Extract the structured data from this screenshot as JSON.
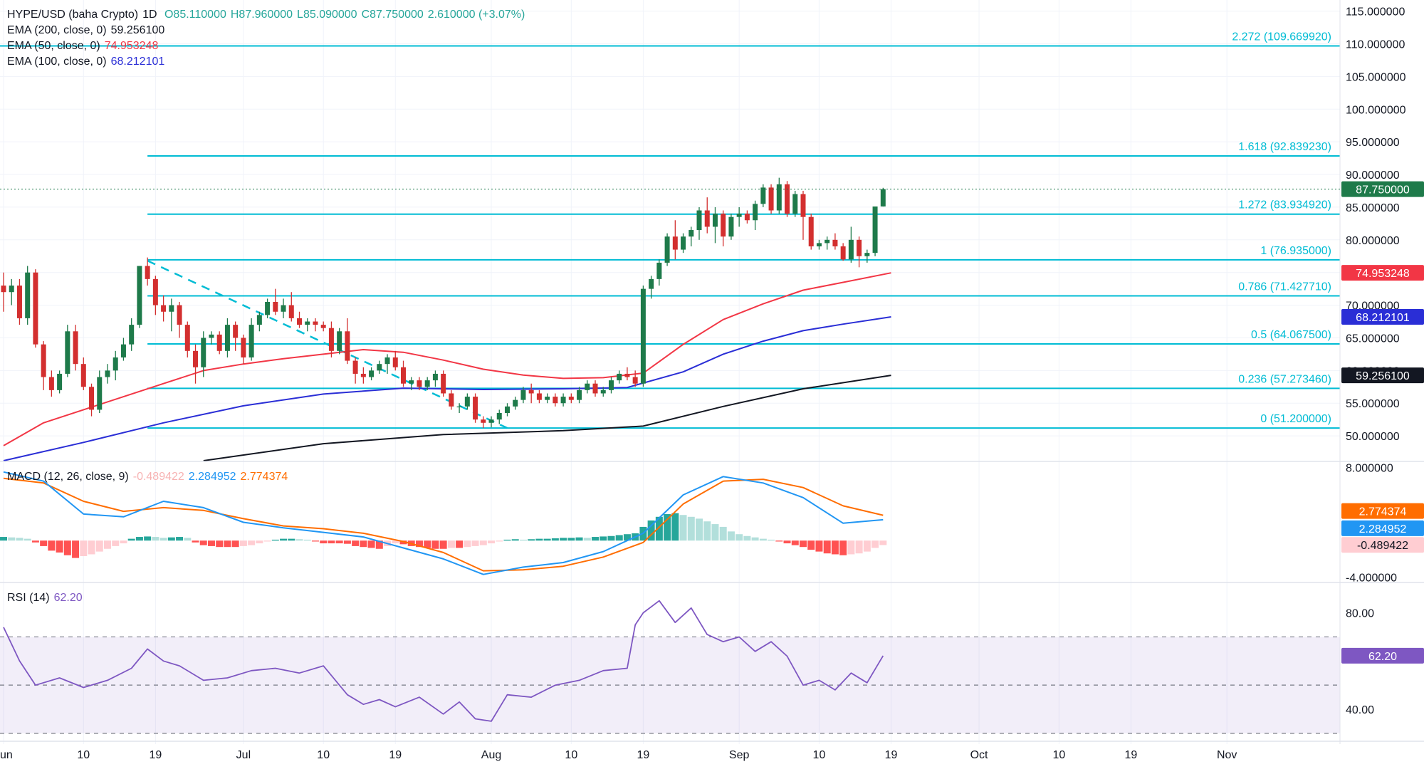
{
  "header": {
    "symbol": "HYPE/USD (baha Crypto)",
    "interval": "1D",
    "open": "O85.110000",
    "high": "H87.960000",
    "low": "L85.090000",
    "close": "C87.750000",
    "change": "2.610000 (+3.07%)"
  },
  "indicators": {
    "ema200": {
      "label": "EMA (200, close, 0)",
      "value": "59.256100",
      "color": "#131722"
    },
    "ema50": {
      "label": "EMA (50, close, 0)",
      "value": "74.953248",
      "color": "#f23645"
    },
    "ema100": {
      "label": "EMA (100, close, 0)",
      "value": "68.212101",
      "color": "#2a2ed6"
    },
    "macd": {
      "label": "MACD (12, 26, close, 9)",
      "hist": "-0.489422",
      "macd": "2.284952",
      "signal": "2.774374",
      "macd_color": "#2196f3",
      "signal_color": "#ff6d00"
    },
    "rsi": {
      "label": "RSI (14)",
      "value": "62.20",
      "color": "#7e57c2"
    }
  },
  "colors": {
    "up": "#26a69a",
    "down": "#ef5350",
    "fib": "#00bcd4",
    "up_dark": "#1e7a4a",
    "down_dark": "#d32f2f"
  },
  "x_axis": {
    "labels": [
      "un",
      "10",
      "19",
      "Jul",
      "10",
      "19",
      "Aug",
      "10",
      "19",
      "Sep",
      "10",
      "19",
      "Oct",
      "10",
      "19",
      "Nov"
    ],
    "label_days": [
      0,
      10,
      19,
      30,
      40,
      49,
      61,
      71,
      80,
      92,
      102,
      111,
      122,
      132,
      141,
      153
    ]
  },
  "chart_data": [
    {
      "type": "candlestick",
      "name": "price",
      "x_start": "May 31",
      "y_ticks": [
        "115.000000",
        "110.000000",
        "105.000000",
        "100.000000",
        "95.000000",
        "90.000000",
        "85.000000",
        "80.000000",
        "75.000000",
        "70.000000",
        "65.000000",
        "60.000000",
        "55.000000",
        "50.000000"
      ],
      "y_tick_values": [
        115,
        110,
        105,
        100,
        95,
        90,
        85,
        80,
        75,
        70,
        65,
        60,
        55,
        50
      ],
      "ylim": [
        46.2,
        116.7
      ],
      "last_price": "87.750000",
      "ohlc": [
        [
          73,
          75,
          69,
          72
        ],
        [
          72,
          74,
          70,
          73
        ],
        [
          73,
          74,
          67,
          68
        ],
        [
          68,
          76,
          67,
          75
        ],
        [
          75,
          75.5,
          63.5,
          64
        ],
        [
          64,
          64.5,
          57,
          59
        ],
        [
          59,
          60,
          56,
          57
        ],
        [
          57,
          60,
          56.5,
          59.5
        ],
        [
          59.5,
          67,
          59,
          66
        ],
        [
          66,
          67,
          60,
          61
        ],
        [
          61,
          62,
          57,
          57.5
        ],
        [
          57.5,
          58,
          53,
          54
        ],
        [
          54,
          60,
          53.5,
          59
        ],
        [
          59,
          61,
          58,
          60
        ],
        [
          60,
          63,
          58.5,
          62
        ],
        [
          62,
          65,
          61.5,
          64
        ],
        [
          64,
          68,
          63,
          67
        ],
        [
          67,
          76,
          66.5,
          76
        ],
        [
          76,
          77.3,
          73,
          74
        ],
        [
          74,
          74.5,
          68.5,
          70
        ],
        [
          70,
          71.5,
          67.5,
          69
        ],
        [
          69,
          71,
          66,
          70
        ],
        [
          70,
          70.5,
          65,
          67
        ],
        [
          67,
          67.5,
          62,
          63
        ],
        [
          63,
          64,
          58,
          60.5
        ],
        [
          60.5,
          66,
          59,
          65
        ],
        [
          65,
          66,
          64,
          65.5
        ],
        [
          65.5,
          66,
          62.5,
          63
        ],
        [
          63,
          68,
          62,
          67
        ],
        [
          67,
          67.5,
          63,
          65
        ],
        [
          65,
          65.5,
          61,
          62
        ],
        [
          62,
          68,
          61.5,
          67
        ],
        [
          67,
          69,
          66,
          68.5
        ],
        [
          68.5,
          71,
          68,
          70.5
        ],
        [
          70.5,
          72.5,
          68.5,
          69
        ],
        [
          69,
          71,
          68,
          70
        ],
        [
          70,
          72,
          67.5,
          68
        ],
        [
          68,
          69,
          66.5,
          67
        ],
        [
          67,
          68,
          66,
          67.5
        ],
        [
          67.5,
          68,
          66,
          67
        ],
        [
          67,
          67.5,
          66,
          66.5
        ],
        [
          66.5,
          67.5,
          62,
          63
        ],
        [
          63,
          66.5,
          62.5,
          66
        ],
        [
          66,
          68,
          61,
          61.5
        ],
        [
          61.5,
          62,
          58,
          59.5
        ],
        [
          59.5,
          60.5,
          58,
          59
        ],
        [
          59,
          60.5,
          58.5,
          60
        ],
        [
          60,
          61.5,
          59.5,
          61
        ],
        [
          61,
          62.5,
          59.5,
          62
        ],
        [
          62,
          63,
          60,
          60.5
        ],
        [
          60.5,
          61.5,
          57.5,
          58
        ],
        [
          58,
          59,
          57,
          58.5
        ],
        [
          58.5,
          59,
          57,
          57.5
        ],
        [
          57.5,
          59,
          57,
          58.5
        ],
        [
          58.5,
          60,
          57.5,
          59.5
        ],
        [
          59.5,
          60,
          56,
          56.5
        ],
        [
          56.5,
          57,
          54,
          54.5
        ],
        [
          54.5,
          55,
          53.5,
          54.5
        ],
        [
          54.5,
          56.5,
          54,
          56
        ],
        [
          56,
          56.5,
          52,
          52.5
        ],
        [
          52.5,
          53,
          51.2,
          52
        ],
        [
          52,
          53,
          51.3,
          52.5
        ],
        [
          52.5,
          54,
          51.8,
          53.5
        ],
        [
          53.5,
          55,
          53,
          54.5
        ],
        [
          54.5,
          56,
          54,
          55.5
        ],
        [
          55.5,
          57.5,
          55,
          57
        ],
        [
          57,
          58,
          55,
          56.5
        ],
        [
          56.5,
          57,
          55,
          55.5
        ],
        [
          55.5,
          56.5,
          55,
          56
        ],
        [
          56,
          56.5,
          54.5,
          55
        ],
        [
          55,
          56.5,
          54.5,
          56
        ],
        [
          56,
          56.5,
          55,
          55.5
        ],
        [
          55.5,
          57.5,
          55,
          57
        ],
        [
          57,
          58.5,
          56.5,
          58
        ],
        [
          58,
          58.5,
          56,
          56.5
        ],
        [
          56.5,
          57.5,
          56,
          57
        ],
        [
          57,
          59,
          56.5,
          58.5
        ],
        [
          58.5,
          60,
          58,
          59.5
        ],
        [
          59.5,
          60.5,
          58.5,
          59
        ],
        [
          59,
          60,
          57.5,
          58
        ],
        [
          58,
          73,
          57.5,
          72.5
        ],
        [
          72.5,
          74.5,
          71,
          74
        ],
        [
          74,
          77,
          73,
          76.5
        ],
        [
          76.5,
          81,
          76,
          80.5
        ],
        [
          80.5,
          83,
          77,
          78.5
        ],
        [
          78.5,
          81,
          78,
          80.5
        ],
        [
          80.5,
          82,
          79,
          81.5
        ],
        [
          81.5,
          85,
          80,
          84.5
        ],
        [
          84.5,
          86.5,
          81,
          82
        ],
        [
          82,
          85,
          79.5,
          84
        ],
        [
          84,
          84.5,
          79,
          80.5
        ],
        [
          80.5,
          84,
          80,
          83.5
        ],
        [
          83.5,
          85,
          82,
          84
        ],
        [
          84,
          84.5,
          82.5,
          83
        ],
        [
          83,
          86,
          81.5,
          85.5
        ],
        [
          85.5,
          88.5,
          85,
          88
        ],
        [
          88,
          88.5,
          84,
          84.5
        ],
        [
          84.5,
          89.5,
          84,
          88.5
        ],
        [
          88.5,
          89,
          83.5,
          84
        ],
        [
          84,
          87.5,
          83.5,
          87
        ],
        [
          87,
          87.5,
          80,
          83.5
        ],
        [
          83.5,
          84,
          78.5,
          79
        ],
        [
          79,
          80,
          78.5,
          79.5
        ],
        [
          79.5,
          80.5,
          78.5,
          80
        ],
        [
          80,
          81,
          78.5,
          79
        ],
        [
          79,
          79.5,
          76.8,
          77
        ],
        [
          77,
          82,
          76.5,
          80
        ],
        [
          80,
          80.5,
          75.8,
          77.5
        ],
        [
          77.5,
          78.5,
          76.5,
          78
        ],
        [
          78,
          85,
          77.5,
          85.1
        ],
        [
          85.11,
          87.96,
          85.09,
          87.75
        ]
      ],
      "ema": {
        "ema50": {
          "x": [
            0,
            5,
            10,
            15,
            20,
            25,
            30,
            35,
            40,
            45,
            50,
            55,
            60,
            65,
            70,
            75,
            80,
            85,
            90,
            95,
            100,
            105,
            111
          ],
          "y": [
            48.5,
            52,
            54,
            56,
            58,
            60,
            61,
            61.8,
            62.5,
            63.2,
            62.8,
            61.6,
            60.2,
            59.3,
            58.8,
            58.9,
            59.6,
            64,
            67.8,
            70.2,
            72.3,
            73.5,
            74.95
          ]
        },
        "ema100": {
          "x": [
            0,
            10,
            20,
            30,
            40,
            50,
            60,
            70,
            78,
            85,
            90,
            95,
            100,
            105,
            111
          ],
          "y": [
            46.2,
            49,
            52,
            54.6,
            56.4,
            57.3,
            57.1,
            57.2,
            57.4,
            59.8,
            62.5,
            64.5,
            66.1,
            67.1,
            68.21
          ]
        },
        "ema200": {
          "x": [
            25,
            40,
            55,
            70,
            80,
            90,
            100,
            111
          ],
          "y": [
            46.2,
            48.8,
            50.2,
            50.8,
            51.5,
            54.5,
            57.2,
            59.26
          ]
        }
      },
      "fibonacci": [
        {
          "level": "2.272",
          "price": 109.66992,
          "label": "2.272 (109.669920)"
        },
        {
          "level": "1.618",
          "price": 92.83923,
          "label": "1.618 (92.839230)"
        },
        {
          "level": "1.272",
          "price": 83.93492,
          "label": "1.272 (83.934920)"
        },
        {
          "level": "1",
          "price": 76.935,
          "label": "1 (76.935000)"
        },
        {
          "level": "0.786",
          "price": 71.42771,
          "label": "0.786 (71.427710)"
        },
        {
          "level": "0.5",
          "price": 64.0675,
          "label": "0.5 (64.067500)"
        },
        {
          "level": "0.236",
          "price": 57.27346,
          "label": "0.236 (57.273460)"
        },
        {
          "level": "0",
          "price": 51.2,
          "label": "0 (51.200000)"
        }
      ],
      "trendline": {
        "x": [
          18,
          63
        ],
        "y": [
          76.8,
          51.2
        ]
      }
    },
    {
      "type": "bar",
      "name": "macd_histogram",
      "y_ticks": [
        "8.000000",
        "-4.000000"
      ],
      "y_tick_values": [
        8,
        -4
      ],
      "ylim": [
        -4.5,
        8.5
      ],
      "histogram": [
        0.4,
        0.35,
        0.3,
        0.2,
        -0.2,
        -0.6,
        -1.1,
        -1.3,
        -1.6,
        -1.9,
        -1.7,
        -1.5,
        -1.2,
        -0.9,
        -0.6,
        -0.3,
        0.2,
        0.4,
        0.45,
        0.4,
        0.3,
        0.35,
        0.4,
        0.3,
        -0.2,
        -0.5,
        -0.6,
        -0.7,
        -0.7,
        -0.7,
        -0.6,
        -0.5,
        -0.3,
        -0.1,
        0.1,
        0.2,
        0.2,
        0.15,
        0.1,
        -0.1,
        -0.3,
        -0.3,
        -0.3,
        -0.35,
        -0.6,
        -0.7,
        -0.8,
        -0.9,
        -0.6,
        -0.3,
        -0.4,
        -0.6,
        -0.7,
        -0.8,
        -0.9,
        -0.9,
        -0.8,
        -0.8,
        -0.7,
        -0.6,
        -0.5,
        -0.3,
        -0.1,
        0.1,
        0.15,
        0.1,
        0.15,
        0.2,
        0.2,
        0.25,
        0.3,
        0.3,
        0.35,
        0.3,
        0.4,
        0.45,
        0.5,
        0.6,
        0.7,
        0.8,
        1.5,
        2.2,
        2.6,
        2.9,
        3.0,
        2.8,
        2.6,
        2.4,
        2.1,
        1.8,
        1.5,
        1.0,
        0.7,
        0.5,
        0.35,
        0.2,
        0.1,
        -0.1,
        -0.3,
        -0.5,
        -0.7,
        -1.0,
        -1.2,
        -1.4,
        -1.5,
        -1.6,
        -1.5,
        -1.4,
        -1.2,
        -0.8,
        -0.489
      ],
      "macd": {
        "x": [
          0,
          5,
          10,
          15,
          20,
          25,
          30,
          35,
          40,
          45,
          50,
          55,
          60,
          65,
          70,
          75,
          80,
          85,
          90,
          95,
          100,
          105,
          110
        ],
        "y": [
          7.5,
          6.5,
          2.9,
          2.6,
          4.3,
          3.6,
          2.0,
          1.4,
          0.9,
          0.4,
          -0.8,
          -2.0,
          -3.7,
          -2.9,
          -2.4,
          -1.2,
          0.8,
          5.0,
          7.0,
          6.3,
          4.7,
          1.9,
          2.28
        ]
      },
      "signal": {
        "x": [
          0,
          5,
          10,
          15,
          20,
          25,
          30,
          35,
          40,
          45,
          50,
          55,
          60,
          65,
          70,
          75,
          80,
          85,
          90,
          95,
          100,
          105,
          110
        ],
        "y": [
          6.8,
          6.3,
          4.3,
          3.2,
          3.6,
          3.3,
          2.4,
          1.6,
          1.3,
          0.8,
          -0.1,
          -1.3,
          -3.3,
          -3.2,
          -2.8,
          -1.8,
          -0.2,
          4.0,
          6.5,
          6.7,
          5.8,
          3.8,
          2.77
        ]
      }
    },
    {
      "type": "line",
      "name": "rsi",
      "y_ticks": [
        "80.00",
        "40.00"
      ],
      "y_tick_values": [
        80,
        40
      ],
      "bands": [
        70,
        50,
        30
      ],
      "ylim": [
        27,
        92
      ],
      "x": [
        0,
        2,
        4,
        7,
        10,
        13,
        16,
        18,
        20,
        22,
        25,
        28,
        31,
        34,
        37,
        40,
        43,
        45,
        47,
        49,
        52,
        55,
        57,
        59,
        61,
        63,
        66,
        69,
        72,
        75,
        78,
        79,
        80,
        82,
        84,
        86,
        88,
        90,
        92,
        94,
        96,
        98,
        100,
        102,
        104,
        106,
        108,
        110
      ],
      "y": [
        74,
        60,
        50,
        53,
        49,
        52,
        57,
        65,
        60,
        58,
        52,
        53,
        56,
        57,
        55,
        58,
        46,
        42,
        44,
        41,
        45,
        38,
        43,
        36,
        35,
        46,
        45,
        50,
        52,
        56,
        57,
        75,
        80,
        85,
        76,
        82,
        71,
        68,
        70,
        64,
        68,
        62,
        50,
        52,
        48,
        55,
        51,
        62.2
      ]
    }
  ]
}
